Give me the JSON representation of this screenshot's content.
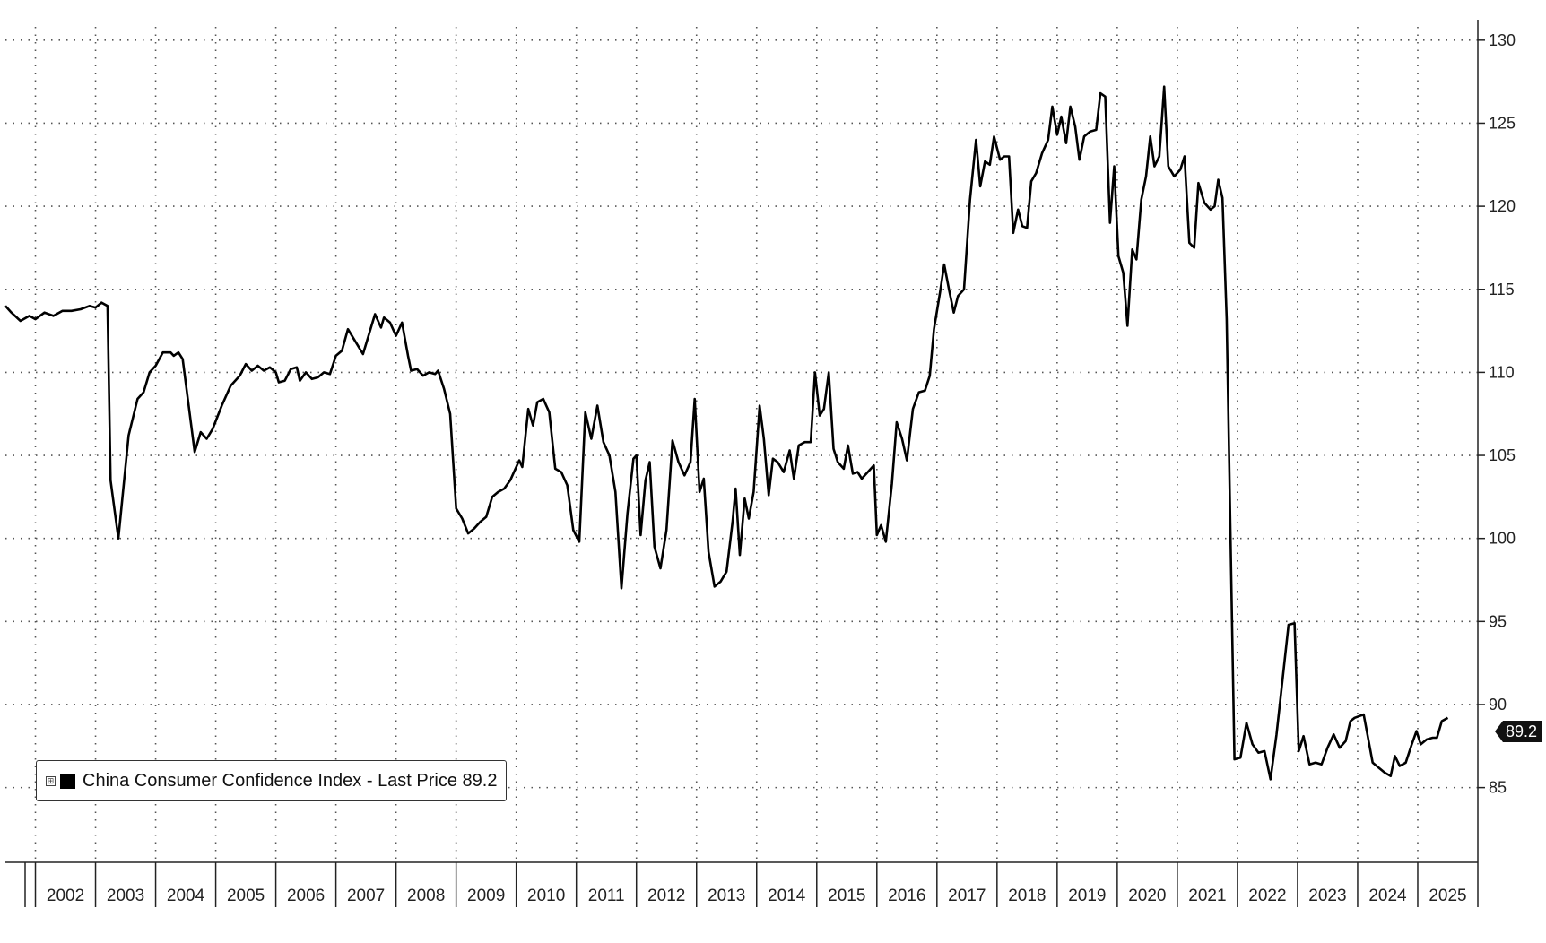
{
  "chart_data": {
    "type": "line",
    "title": "",
    "xlabel": "",
    "ylabel": "",
    "ylim": [
      80.5,
      130.8
    ],
    "yticks": [
      85,
      90,
      95,
      100,
      105,
      110,
      115,
      120,
      125,
      130
    ],
    "ytick_labels": [
      "85",
      "90",
      "95",
      "100",
      "105",
      "110",
      "115",
      "120",
      "125",
      "130"
    ],
    "xlim": [
      2001.5,
      2026.0
    ],
    "xtick_labels": [
      "2002",
      "2003",
      "2004",
      "2005",
      "2006",
      "2007",
      "2008",
      "2009",
      "2010",
      "2011",
      "2012",
      "2013",
      "2014",
      "2015",
      "2016",
      "2017",
      "2018",
      "2019",
      "2020",
      "2021",
      "2022",
      "2023",
      "2024",
      "2025"
    ],
    "grid": true,
    "y_axis_side": "right",
    "legend": {
      "position": "bottom-left",
      "toggle": "⊞",
      "text": "China Consumer Confidence Index - Last Price 89.2"
    },
    "last_value_label": "89.2",
    "series": [
      {
        "name": "China Consumer Confidence Index",
        "color": "#000000",
        "points": [
          [
            2001.5,
            114.0
          ],
          [
            2001.6,
            113.6
          ],
          [
            2001.75,
            113.1
          ],
          [
            2001.9,
            113.4
          ],
          [
            2002.0,
            113.2
          ],
          [
            2002.15,
            113.6
          ],
          [
            2002.3,
            113.4
          ],
          [
            2002.45,
            113.7
          ],
          [
            2002.6,
            113.7
          ],
          [
            2002.75,
            113.8
          ],
          [
            2002.9,
            114.0
          ],
          [
            2003.0,
            113.9
          ],
          [
            2003.1,
            114.2
          ],
          [
            2003.2,
            114.0
          ],
          [
            2003.25,
            103.5
          ],
          [
            2003.38,
            100.0
          ],
          [
            2003.55,
            106.2
          ],
          [
            2003.7,
            108.4
          ],
          [
            2003.8,
            108.8
          ],
          [
            2003.9,
            110.0
          ],
          [
            2004.0,
            110.4
          ],
          [
            2004.12,
            111.2
          ],
          [
            2004.25,
            111.2
          ],
          [
            2004.3,
            111.0
          ],
          [
            2004.38,
            111.2
          ],
          [
            2004.45,
            110.8
          ],
          [
            2004.55,
            108.0
          ],
          [
            2004.65,
            105.2
          ],
          [
            2004.75,
            106.4
          ],
          [
            2004.85,
            106.0
          ],
          [
            2004.95,
            106.6
          ],
          [
            2005.1,
            108.0
          ],
          [
            2005.25,
            109.2
          ],
          [
            2005.4,
            109.8
          ],
          [
            2005.5,
            110.5
          ],
          [
            2005.6,
            110.1
          ],
          [
            2005.7,
            110.4
          ],
          [
            2005.8,
            110.1
          ],
          [
            2005.9,
            110.3
          ],
          [
            2006.0,
            110.0
          ],
          [
            2006.05,
            109.4
          ],
          [
            2006.15,
            109.5
          ],
          [
            2006.25,
            110.2
          ],
          [
            2006.35,
            110.3
          ],
          [
            2006.4,
            109.5
          ],
          [
            2006.5,
            110.0
          ],
          [
            2006.6,
            109.6
          ],
          [
            2006.7,
            109.7
          ],
          [
            2006.8,
            110.0
          ],
          [
            2006.9,
            109.9
          ],
          [
            2007.0,
            111.0
          ],
          [
            2007.1,
            111.3
          ],
          [
            2007.2,
            112.6
          ],
          [
            2007.3,
            112.0
          ],
          [
            2007.45,
            111.1
          ],
          [
            2007.55,
            112.3
          ],
          [
            2007.65,
            113.5
          ],
          [
            2007.75,
            112.7
          ],
          [
            2007.8,
            113.3
          ],
          [
            2007.9,
            113.0
          ],
          [
            2008.0,
            112.2
          ],
          [
            2008.1,
            113.0
          ],
          [
            2008.2,
            111.0
          ],
          [
            2008.25,
            110.1
          ],
          [
            2008.35,
            110.2
          ],
          [
            2008.45,
            109.8
          ],
          [
            2008.55,
            110.0
          ],
          [
            2008.65,
            109.9
          ],
          [
            2008.7,
            110.1
          ],
          [
            2008.8,
            109.0
          ],
          [
            2008.9,
            107.5
          ],
          [
            2009.0,
            101.8
          ],
          [
            2009.1,
            101.2
          ],
          [
            2009.2,
            100.3
          ],
          [
            2009.3,
            100.6
          ],
          [
            2009.4,
            101.0
          ],
          [
            2009.5,
            101.3
          ],
          [
            2009.6,
            102.5
          ],
          [
            2009.7,
            102.8
          ],
          [
            2009.8,
            103.0
          ],
          [
            2009.9,
            103.5
          ],
          [
            2010.0,
            104.3
          ],
          [
            2010.05,
            104.7
          ],
          [
            2010.1,
            104.3
          ],
          [
            2010.2,
            107.8
          ],
          [
            2010.28,
            106.8
          ],
          [
            2010.35,
            108.2
          ],
          [
            2010.45,
            108.4
          ],
          [
            2010.55,
            107.6
          ],
          [
            2010.65,
            104.2
          ],
          [
            2010.75,
            104.0
          ],
          [
            2010.85,
            103.2
          ],
          [
            2010.95,
            100.5
          ],
          [
            2011.05,
            99.8
          ],
          [
            2011.15,
            107.6
          ],
          [
            2011.25,
            106.0
          ],
          [
            2011.35,
            108.0
          ],
          [
            2011.45,
            105.8
          ],
          [
            2011.55,
            105.0
          ],
          [
            2011.65,
            102.8
          ],
          [
            2011.75,
            97.0
          ],
          [
            2011.85,
            101.5
          ],
          [
            2011.95,
            104.8
          ],
          [
            2012.0,
            105.0
          ],
          [
            2012.07,
            100.2
          ],
          [
            2012.15,
            103.5
          ],
          [
            2012.22,
            104.6
          ],
          [
            2012.3,
            99.5
          ],
          [
            2012.4,
            98.2
          ],
          [
            2012.5,
            100.5
          ],
          [
            2012.6,
            105.9
          ],
          [
            2012.7,
            104.6
          ],
          [
            2012.8,
            103.8
          ],
          [
            2012.9,
            104.6
          ],
          [
            2012.97,
            108.4
          ],
          [
            2013.05,
            102.8
          ],
          [
            2013.12,
            103.6
          ],
          [
            2013.2,
            99.2
          ],
          [
            2013.3,
            97.1
          ],
          [
            2013.4,
            97.4
          ],
          [
            2013.5,
            98.0
          ],
          [
            2013.6,
            101.0
          ],
          [
            2013.65,
            103.0
          ],
          [
            2013.72,
            99.0
          ],
          [
            2013.8,
            102.4
          ],
          [
            2013.87,
            101.2
          ],
          [
            2013.95,
            102.8
          ],
          [
            2014.05,
            108.0
          ],
          [
            2014.12,
            106.0
          ],
          [
            2014.2,
            102.6
          ],
          [
            2014.27,
            104.8
          ],
          [
            2014.35,
            104.6
          ],
          [
            2014.45,
            104.0
          ],
          [
            2014.55,
            105.3
          ],
          [
            2014.62,
            103.6
          ],
          [
            2014.7,
            105.6
          ],
          [
            2014.8,
            105.8
          ],
          [
            2014.9,
            105.8
          ],
          [
            2014.97,
            110.0
          ],
          [
            2015.05,
            107.4
          ],
          [
            2015.12,
            107.8
          ],
          [
            2015.2,
            110.0
          ],
          [
            2015.28,
            105.4
          ],
          [
            2015.35,
            104.6
          ],
          [
            2015.45,
            104.2
          ],
          [
            2015.52,
            105.6
          ],
          [
            2015.6,
            103.9
          ],
          [
            2015.68,
            104.0
          ],
          [
            2015.75,
            103.6
          ],
          [
            2015.85,
            104.0
          ],
          [
            2015.95,
            104.4
          ],
          [
            2016.0,
            100.2
          ],
          [
            2016.07,
            100.8
          ],
          [
            2016.15,
            99.8
          ],
          [
            2016.25,
            103.3
          ],
          [
            2016.33,
            107.0
          ],
          [
            2016.42,
            106.0
          ],
          [
            2016.5,
            104.7
          ],
          [
            2016.6,
            107.8
          ],
          [
            2016.7,
            108.8
          ],
          [
            2016.8,
            108.9
          ],
          [
            2016.88,
            109.8
          ],
          [
            2016.95,
            112.6
          ],
          [
            2017.05,
            114.8
          ],
          [
            2017.12,
            116.5
          ],
          [
            2017.2,
            115.0
          ],
          [
            2017.28,
            113.6
          ],
          [
            2017.35,
            114.6
          ],
          [
            2017.45,
            115.0
          ],
          [
            2017.55,
            120.4
          ],
          [
            2017.65,
            124.0
          ],
          [
            2017.72,
            121.2
          ],
          [
            2017.8,
            122.7
          ],
          [
            2017.88,
            122.5
          ],
          [
            2017.95,
            124.2
          ],
          [
            2018.05,
            122.8
          ],
          [
            2018.12,
            123.0
          ],
          [
            2018.2,
            123.0
          ],
          [
            2018.27,
            118.4
          ],
          [
            2018.35,
            119.8
          ],
          [
            2018.42,
            118.8
          ],
          [
            2018.5,
            118.7
          ],
          [
            2018.57,
            121.5
          ],
          [
            2018.65,
            122.0
          ],
          [
            2018.75,
            123.2
          ],
          [
            2018.85,
            124.0
          ],
          [
            2018.92,
            126.0
          ],
          [
            2019.0,
            124.3
          ],
          [
            2019.07,
            125.4
          ],
          [
            2019.15,
            123.8
          ],
          [
            2019.22,
            126.0
          ],
          [
            2019.3,
            124.8
          ],
          [
            2019.37,
            122.8
          ],
          [
            2019.45,
            124.2
          ],
          [
            2019.55,
            124.5
          ],
          [
            2019.65,
            124.6
          ],
          [
            2019.72,
            126.8
          ],
          [
            2019.8,
            126.6
          ],
          [
            2019.88,
            119.0
          ],
          [
            2019.95,
            122.4
          ],
          [
            2020.02,
            117.0
          ],
          [
            2020.1,
            116.0
          ],
          [
            2020.17,
            112.8
          ],
          [
            2020.25,
            117.4
          ],
          [
            2020.32,
            116.8
          ],
          [
            2020.4,
            120.4
          ],
          [
            2020.48,
            121.8
          ],
          [
            2020.55,
            124.2
          ],
          [
            2020.62,
            122.4
          ],
          [
            2020.7,
            123.0
          ],
          [
            2020.78,
            127.2
          ],
          [
            2020.85,
            122.4
          ],
          [
            2020.95,
            121.8
          ],
          [
            2021.05,
            122.2
          ],
          [
            2021.12,
            123.0
          ],
          [
            2021.2,
            117.8
          ],
          [
            2021.28,
            117.5
          ],
          [
            2021.35,
            121.4
          ],
          [
            2021.45,
            120.2
          ],
          [
            2021.55,
            119.8
          ],
          [
            2021.62,
            120.0
          ],
          [
            2021.68,
            121.6
          ],
          [
            2021.75,
            120.5
          ],
          [
            2021.82,
            113.2
          ],
          [
            2021.88,
            101.0
          ],
          [
            2021.95,
            86.7
          ],
          [
            2022.05,
            86.8
          ],
          [
            2022.15,
            88.9
          ],
          [
            2022.25,
            87.6
          ],
          [
            2022.35,
            87.1
          ],
          [
            2022.45,
            87.2
          ],
          [
            2022.55,
            85.5
          ],
          [
            2022.65,
            88.2
          ],
          [
            2022.75,
            91.5
          ],
          [
            2022.85,
            94.8
          ],
          [
            2022.95,
            94.9
          ],
          [
            2023.02,
            87.2
          ],
          [
            2023.1,
            88.1
          ],
          [
            2023.2,
            86.4
          ],
          [
            2023.3,
            86.5
          ],
          [
            2023.4,
            86.4
          ],
          [
            2023.5,
            87.4
          ],
          [
            2023.6,
            88.2
          ],
          [
            2023.7,
            87.4
          ],
          [
            2023.8,
            87.8
          ],
          [
            2023.88,
            89.0
          ],
          [
            2023.95,
            89.2
          ],
          [
            2024.1,
            89.4
          ],
          [
            2024.25,
            86.5
          ],
          [
            2024.35,
            86.2
          ],
          [
            2024.45,
            85.9
          ],
          [
            2024.55,
            85.7
          ],
          [
            2024.62,
            86.9
          ],
          [
            2024.7,
            86.3
          ],
          [
            2024.8,
            86.5
          ],
          [
            2024.9,
            87.6
          ],
          [
            2024.98,
            88.4
          ],
          [
            2025.05,
            87.6
          ],
          [
            2025.15,
            87.9
          ],
          [
            2025.25,
            88.0
          ],
          [
            2025.32,
            88.0
          ],
          [
            2025.4,
            89.0
          ],
          [
            2025.5,
            89.2
          ]
        ]
      }
    ]
  }
}
